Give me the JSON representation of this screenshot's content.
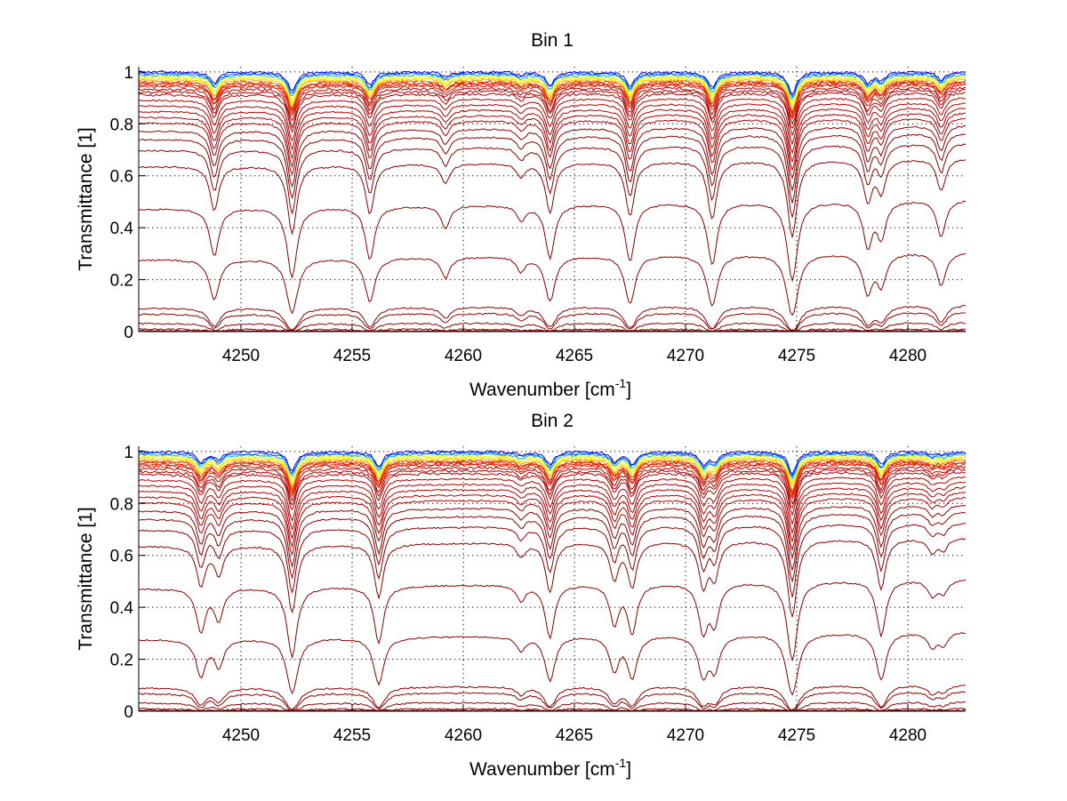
{
  "chart_data": [
    {
      "type": "line",
      "title": "Bin 1",
      "xlabel": "Wavenumber [cm",
      "xlabel_sup": "-1",
      "xlabel_end": "]",
      "ylabel": "Transmittance [1]",
      "xlim": [
        4245.4,
        4282.6
      ],
      "ylim": [
        0,
        1.02
      ],
      "xticks": [
        4250,
        4255,
        4260,
        4265,
        4270,
        4275,
        4280
      ],
      "xtick_labels": [
        "4250",
        "4255",
        "4260",
        "4265",
        "4270",
        "4275",
        "4280"
      ],
      "yticks": [
        0,
        0.2,
        0.4,
        0.6,
        0.8,
        1
      ],
      "ytick_labels": [
        "0",
        "0.2",
        "0.4",
        "0.6",
        "0.8",
        "1"
      ],
      "grid": true,
      "colormap": "jet (blue = highest transmittance, dark red = lowest)",
      "absorption_lines": [
        {
          "center": 4248.8,
          "depth": 0.45
        },
        {
          "center": 4252.3,
          "depth": 0.75
        },
        {
          "center": 4255.8,
          "depth": 0.5
        },
        {
          "center": 4259.2,
          "depth": 0.18
        },
        {
          "center": 4262.6,
          "depth": 0.12
        },
        {
          "center": 4263.9,
          "depth": 0.5
        },
        {
          "center": 4267.5,
          "depth": 0.55
        },
        {
          "center": 4271.2,
          "depth": 0.6
        },
        {
          "center": 4274.8,
          "depth": 0.85
        },
        {
          "center": 4278.2,
          "depth": 0.4
        },
        {
          "center": 4278.8,
          "depth": 0.3
        },
        {
          "center": 4281.5,
          "depth": 0.3
        }
      ],
      "series_baselines": [
        1.0,
        0.995,
        0.99,
        0.985,
        0.98,
        0.975,
        0.97,
        0.965,
        0.96,
        0.955,
        0.95,
        0.94,
        0.93,
        0.92,
        0.9,
        0.88,
        0.86,
        0.84,
        0.82,
        0.79,
        0.76,
        0.72,
        0.66,
        0.5,
        0.3,
        0.1,
        0.075,
        0.035,
        0.01,
        0.003
      ]
    },
    {
      "type": "line",
      "title": "Bin 2",
      "xlabel": "Wavenumber [cm",
      "xlabel_sup": "-1",
      "xlabel_end": "]",
      "ylabel": "Transmittance [1]",
      "xlim": [
        4245.4,
        4282.6
      ],
      "ylim": [
        0,
        1.02
      ],
      "xticks": [
        4250,
        4255,
        4260,
        4265,
        4270,
        4275,
        4280
      ],
      "xtick_labels": [
        "4250",
        "4255",
        "4260",
        "4265",
        "4270",
        "4275",
        "4280"
      ],
      "yticks": [
        0,
        0.2,
        0.4,
        0.6,
        0.8,
        1
      ],
      "ytick_labels": [
        "0",
        "0.2",
        "0.4",
        "0.6",
        "0.8",
        "1"
      ],
      "grid": true,
      "colormap": "jet (blue = highest transmittance, dark red = lowest)",
      "absorption_lines": [
        {
          "center": 4248.2,
          "depth": 0.4
        },
        {
          "center": 4249.0,
          "depth": 0.28
        },
        {
          "center": 4252.3,
          "depth": 0.75
        },
        {
          "center": 4256.2,
          "depth": 0.55
        },
        {
          "center": 4262.6,
          "depth": 0.12
        },
        {
          "center": 4263.9,
          "depth": 0.5
        },
        {
          "center": 4266.8,
          "depth": 0.35
        },
        {
          "center": 4267.6,
          "depth": 0.45
        },
        {
          "center": 4270.8,
          "depth": 0.45
        },
        {
          "center": 4271.3,
          "depth": 0.35
        },
        {
          "center": 4274.8,
          "depth": 0.85
        },
        {
          "center": 4278.8,
          "depth": 0.5
        },
        {
          "center": 4281.1,
          "depth": 0.12
        },
        {
          "center": 4281.6,
          "depth": 0.1
        }
      ],
      "series_baselines": [
        1.0,
        0.995,
        0.99,
        0.985,
        0.98,
        0.975,
        0.97,
        0.965,
        0.96,
        0.955,
        0.95,
        0.94,
        0.93,
        0.92,
        0.9,
        0.88,
        0.86,
        0.84,
        0.82,
        0.79,
        0.76,
        0.72,
        0.66,
        0.5,
        0.3,
        0.1,
        0.075,
        0.035,
        0.01,
        0.003
      ]
    }
  ]
}
